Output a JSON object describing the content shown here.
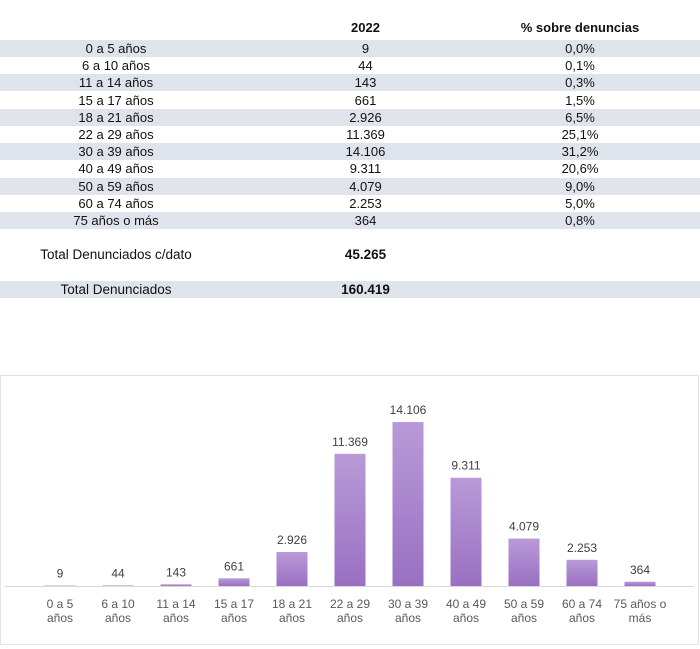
{
  "table": {
    "headers": {
      "col2": "2022",
      "col3": "% sobre denuncias"
    },
    "rows": [
      {
        "label": "0 a 5 años",
        "value": "9",
        "pct": "0,0%"
      },
      {
        "label": "6 a 10 años",
        "value": "44",
        "pct": "0,1%"
      },
      {
        "label": "11 a 14 años",
        "value": "143",
        "pct": "0,3%"
      },
      {
        "label": "15 a 17 años",
        "value": "661",
        "pct": "1,5%"
      },
      {
        "label": "18 a 21 años",
        "value": "2.926",
        "pct": "6,5%"
      },
      {
        "label": "22 a 29 años",
        "value": "11.369",
        "pct": "25,1%"
      },
      {
        "label": "30 a 39 años",
        "value": "14.106",
        "pct": "31,2%"
      },
      {
        "label": "40 a 49 años",
        "value": "9.311",
        "pct": "20,6%"
      },
      {
        "label": "50 a 59 años",
        "value": "4.079",
        "pct": "9,0%"
      },
      {
        "label": "60 a 74 años",
        "value": "2.253",
        "pct": "5,0%"
      },
      {
        "label": "75 años o más",
        "value": "364",
        "pct": "0,8%"
      }
    ],
    "total_cdato": {
      "label": "Total Denunciados c/dato",
      "value": "45.265"
    },
    "total": {
      "label": "Total Denunciados",
      "value": "160.419"
    }
  },
  "colors": {
    "bar_top": "#b99ad8",
    "bar_bottom": "#9a70c2",
    "row_shade": "#dfe4ec"
  },
  "chart_data": {
    "type": "bar",
    "categories": [
      [
        "0 a 5",
        "años"
      ],
      [
        "6 a 10",
        "años"
      ],
      [
        "11 a 14",
        "años"
      ],
      [
        "15 a 17",
        "años"
      ],
      [
        "18 a 21",
        "años"
      ],
      [
        "22 a 29",
        "años"
      ],
      [
        "30 a 39",
        "años"
      ],
      [
        "40 a 49",
        "años"
      ],
      [
        "50 a 59",
        "años"
      ],
      [
        "60 a 74",
        "años"
      ],
      [
        "75 años o",
        "más"
      ]
    ],
    "values": [
      9,
      44,
      143,
      661,
      2926,
      11369,
      14106,
      9311,
      4079,
      2253,
      364
    ],
    "data_labels": [
      "9",
      "44",
      "143",
      "661",
      "2.926",
      "11.369",
      "14.106",
      "9.311",
      "4.079",
      "2.253",
      "364"
    ],
    "title": "",
    "xlabel": "",
    "ylabel": "",
    "ylim": [
      0,
      14106
    ],
    "grid": false,
    "legend": "none"
  }
}
